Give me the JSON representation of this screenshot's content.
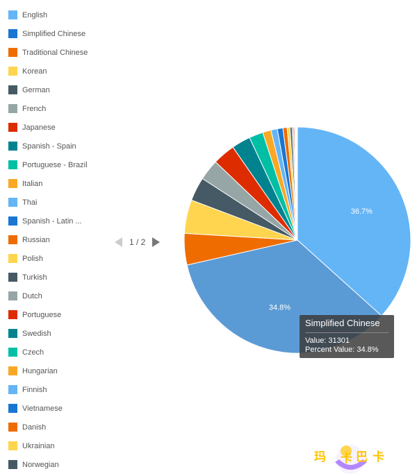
{
  "chart_data": {
    "type": "pie",
    "slices": [
      {
        "name": "English",
        "percent": 36.7,
        "color": "#64b5f6"
      },
      {
        "name": "Simplified Chinese",
        "value": 31301,
        "percent": 34.8,
        "color": "#1976d2"
      },
      {
        "name": "Traditional Chinese",
        "percent": 4.5,
        "color": "#ef6c00"
      },
      {
        "name": "Korean",
        "percent": 4.8,
        "color": "#ffd54f"
      },
      {
        "name": "German",
        "percent": 3.4,
        "color": "#455a64"
      },
      {
        "name": "French",
        "percent": 3.0,
        "color": "#96a6a6"
      },
      {
        "name": "Japanese",
        "percent": 3.2,
        "color": "#dd2c00"
      },
      {
        "name": "Spanish - Spain",
        "percent": 2.7,
        "color": "#00838f"
      },
      {
        "name": "Portuguese - Brazil",
        "percent": 2.0,
        "color": "#00bfa5"
      },
      {
        "name": "Italian",
        "percent": 1.2,
        "color": "#f9a825"
      },
      {
        "name": "Thai",
        "percent": 0.9,
        "color": "#64b5f6"
      },
      {
        "name": "Spanish - Latin ...",
        "percent": 0.8,
        "color": "#1976d2"
      },
      {
        "name": "Russian",
        "percent": 0.6,
        "color": "#ef6c00"
      },
      {
        "name": "Polish",
        "percent": 0.4,
        "color": "#ffd54f"
      },
      {
        "name": "Turkish",
        "percent": 0.3,
        "color": "#455a64"
      },
      {
        "name": "Dutch",
        "percent": 0.2,
        "color": "#96a6a6"
      },
      {
        "name": "Portuguese",
        "percent": 0.15,
        "color": "#dd2c00"
      },
      {
        "name": "Swedish",
        "percent": 0.1,
        "color": "#00838f"
      },
      {
        "name": "Czech",
        "percent": 0.08,
        "color": "#00bfa5"
      },
      {
        "name": "Hungarian",
        "percent": 0.06,
        "color": "#f9a825"
      },
      {
        "name": "Finnish",
        "percent": 0.05,
        "color": "#64b5f6"
      },
      {
        "name": "Vietnamese",
        "percent": 0.04,
        "color": "#1976d2"
      },
      {
        "name": "Danish",
        "percent": 0.03,
        "color": "#ef6c00"
      },
      {
        "name": "Ukrainian",
        "percent": 0.03,
        "color": "#ffd54f"
      },
      {
        "name": "Norwegian",
        "percent": 0.02,
        "color": "#455a64"
      }
    ],
    "labels": {
      "english": "36.7%",
      "simplified": "34.8%"
    },
    "legend": "left"
  },
  "pager": {
    "text": "1 / 2"
  },
  "tooltip": {
    "title": "Simplified Chinese",
    "value_line": "Value: 31301",
    "percent_line": "Percent Value: 34.8%"
  },
  "watermark": {
    "text": "玛卡巴卡"
  }
}
